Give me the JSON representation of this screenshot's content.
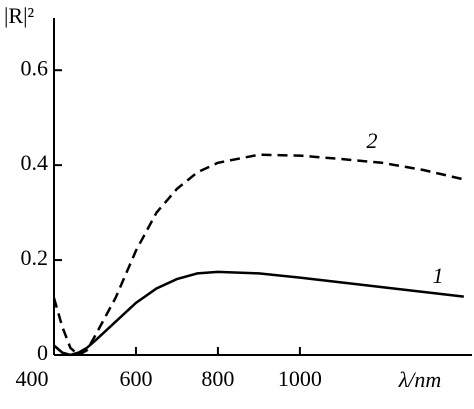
{
  "chart_data": {
    "type": "line",
    "x_label": "λ/nm",
    "y_label": "|R|²",
    "x": [
      400,
      420,
      440,
      460,
      480,
      500,
      550,
      600,
      650,
      700,
      750,
      800,
      900,
      1000,
      1100,
      1200,
      1300,
      1400
    ],
    "series": [
      {
        "name": "1",
        "color": "#000000",
        "dash": "solid",
        "values": [
          0.02,
          0.005,
          0.0,
          0.005,
          0.015,
          0.03,
          0.07,
          0.11,
          0.14,
          0.16,
          0.172,
          0.175,
          0.172,
          0.163,
          0.153,
          0.143,
          0.133,
          0.123
        ]
      },
      {
        "name": "2",
        "color": "#000000",
        "dash": "dashed",
        "values": [
          0.12,
          0.06,
          0.015,
          0.0,
          0.01,
          0.04,
          0.12,
          0.22,
          0.3,
          0.35,
          0.385,
          0.405,
          0.422,
          0.42,
          0.413,
          0.405,
          0.39,
          0.37
        ]
      }
    ],
    "xlim": [
      400,
      1420
    ],
    "xticks": [
      400,
      600,
      800,
      1000
    ],
    "ylim": [
      0,
      0.71
    ],
    "yticks": [
      0,
      0.2,
      0.4,
      0.6
    ]
  }
}
